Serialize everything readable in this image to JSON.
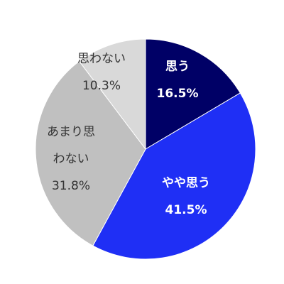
{
  "chart_data": {
    "type": "pie",
    "categories": [
      "思う",
      "やや思う",
      "あまり思わない",
      "思わない"
    ],
    "values": [
      16.5,
      41.5,
      31.8,
      10.3
    ],
    "value_labels": [
      "16.5%",
      "41.5%",
      "31.8%",
      "10.3%"
    ],
    "colors": [
      "#000066",
      "#1f2ff5",
      "#c0c0c0",
      "#d9d9d9"
    ],
    "label_colors": [
      "#ffffff",
      "#ffffff",
      "#333333",
      "#333333"
    ]
  }
}
